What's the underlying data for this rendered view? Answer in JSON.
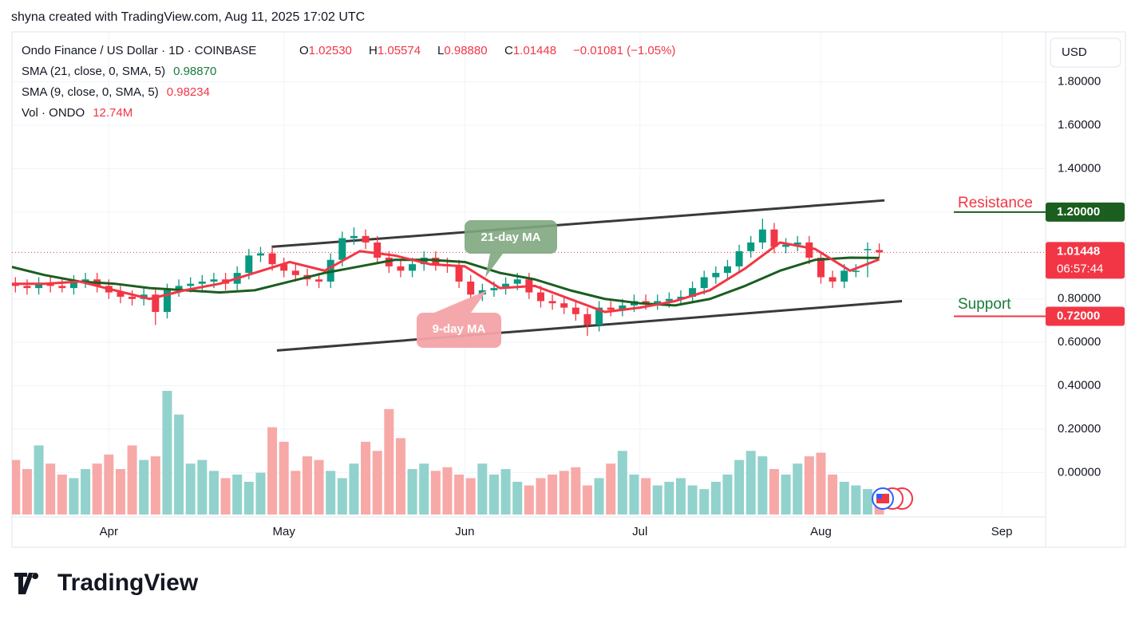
{
  "header": "shyna created with TradingView.com, Aug 11, 2025 17:02 UTC",
  "legend": {
    "symbol": "Ondo Finance / US Dollar · 1D · COINBASE",
    "o_label": "O",
    "o": "1.02530",
    "h_label": "H",
    "h": "1.05574",
    "l_label": "L",
    "l": "0.98880",
    "c_label": "C",
    "c": "1.01448",
    "change": "−0.01081 (−1.05%)",
    "sma21_label": "SMA (21, close, 0, SMA, 5)",
    "sma21": "0.98870",
    "sma9_label": "SMA (9, close, 0, SMA, 5)",
    "sma9": "0.98234",
    "vol_label": "Vol · ONDO",
    "vol": "12.74M"
  },
  "currency": "USD",
  "brand": "TradingView",
  "chart_data": {
    "type": "candlestick",
    "x": [
      1,
      3,
      5,
      7,
      9,
      11,
      13,
      15,
      17,
      19,
      21,
      23,
      25,
      27,
      29,
      31,
      33,
      35,
      37,
      39,
      41,
      43,
      45,
      47,
      49,
      51,
      53,
      55,
      57,
      59,
      61,
      63,
      65,
      67,
      69,
      71,
      73,
      75,
      77,
      79,
      81,
      83,
      85,
      87,
      89,
      91,
      93,
      95,
      97,
      99,
      101,
      103,
      105,
      107,
      109,
      111,
      113,
      115,
      117,
      119,
      121,
      123,
      125,
      127,
      129,
      131,
      133,
      135,
      137,
      139,
      141,
      143,
      145,
      147,
      149
    ],
    "open": [
      0.87,
      0.86,
      0.85,
      0.87,
      0.86,
      0.85,
      0.88,
      0.89,
      0.86,
      0.83,
      0.81,
      0.8,
      0.82,
      0.74,
      0.84,
      0.86,
      0.87,
      0.88,
      0.89,
      0.87,
      0.92,
      1.0,
      1.01,
      0.96,
      0.93,
      0.91,
      0.89,
      0.88,
      0.98,
      1.08,
      1.09,
      1.06,
      0.99,
      0.95,
      0.93,
      0.96,
      0.99,
      0.96,
      0.95,
      0.88,
      0.82,
      0.84,
      0.85,
      0.87,
      0.89,
      0.83,
      0.79,
      0.78,
      0.76,
      0.73,
      0.68,
      0.76,
      0.75,
      0.77,
      0.79,
      0.78,
      0.79,
      0.8,
      0.81,
      0.85,
      0.9,
      0.92,
      0.95,
      1.02,
      1.06,
      1.12,
      1.04,
      1.05,
      1.06,
      0.99,
      0.9,
      0.88,
      0.93,
      1.03,
      1.0253
    ],
    "high": [
      0.9,
      0.89,
      0.9,
      0.9,
      0.89,
      0.91,
      0.92,
      0.92,
      0.89,
      0.86,
      0.84,
      0.85,
      0.85,
      0.87,
      0.89,
      0.9,
      0.91,
      0.92,
      0.92,
      0.95,
      1.03,
      1.04,
      1.04,
      0.99,
      0.96,
      0.94,
      0.92,
      1.01,
      1.11,
      1.13,
      1.12,
      1.09,
      1.02,
      0.98,
      0.99,
      1.02,
      1.02,
      0.99,
      0.98,
      0.91,
      0.87,
      0.88,
      0.9,
      0.92,
      0.92,
      0.86,
      0.82,
      0.81,
      0.79,
      0.76,
      0.79,
      0.79,
      0.8,
      0.82,
      0.82,
      0.82,
      0.83,
      0.84,
      0.88,
      0.93,
      0.95,
      0.98,
      1.05,
      1.09,
      1.17,
      1.15,
      1.08,
      1.09,
      1.09,
      1.02,
      0.93,
      0.96,
      0.96,
      1.06,
      1.05574
    ],
    "low": [
      0.83,
      0.82,
      0.82,
      0.83,
      0.83,
      0.82,
      0.85,
      0.83,
      0.8,
      0.78,
      0.77,
      0.77,
      0.68,
      0.71,
      0.81,
      0.83,
      0.84,
      0.85,
      0.84,
      0.84,
      0.89,
      0.97,
      0.93,
      0.9,
      0.88,
      0.86,
      0.85,
      0.85,
      0.95,
      1.05,
      1.03,
      0.96,
      0.92,
      0.9,
      0.9,
      0.93,
      0.93,
      0.92,
      0.85,
      0.79,
      0.79,
      0.81,
      0.82,
      0.84,
      0.8,
      0.76,
      0.75,
      0.73,
      0.7,
      0.63,
      0.65,
      0.72,
      0.72,
      0.74,
      0.75,
      0.75,
      0.76,
      0.77,
      0.78,
      0.82,
      0.87,
      0.89,
      0.92,
      0.99,
      1.03,
      1.01,
      1.01,
      1.02,
      0.96,
      0.87,
      0.85,
      0.85,
      0.9,
      0.9,
      0.9888
    ],
    "close": [
      0.86,
      0.85,
      0.87,
      0.86,
      0.85,
      0.88,
      0.89,
      0.86,
      0.83,
      0.81,
      0.8,
      0.82,
      0.74,
      0.84,
      0.86,
      0.87,
      0.88,
      0.89,
      0.87,
      0.92,
      1.0,
      1.01,
      0.96,
      0.93,
      0.91,
      0.89,
      0.88,
      0.98,
      1.08,
      1.09,
      1.06,
      0.99,
      0.95,
      0.93,
      0.96,
      0.99,
      0.96,
      0.95,
      0.88,
      0.82,
      0.84,
      0.85,
      0.87,
      0.89,
      0.83,
      0.79,
      0.78,
      0.76,
      0.73,
      0.68,
      0.76,
      0.75,
      0.77,
      0.79,
      0.78,
      0.79,
      0.8,
      0.81,
      0.85,
      0.9,
      0.92,
      0.95,
      1.02,
      1.06,
      1.12,
      1.04,
      1.05,
      1.06,
      0.99,
      0.9,
      0.88,
      0.93,
      0.93,
      1.03,
      1.01448
    ],
    "volume": [
      30,
      25,
      38,
      28,
      22,
      20,
      25,
      28,
      33,
      25,
      38,
      30,
      32,
      68,
      55,
      28,
      30,
      24,
      20,
      22,
      18,
      23,
      48,
      40,
      24,
      32,
      30,
      24,
      20,
      28,
      40,
      35,
      58,
      42,
      25,
      28,
      24,
      26,
      22,
      20,
      28,
      22,
      25,
      18,
      16,
      20,
      22,
      24,
      26,
      16,
      20,
      28,
      35,
      22,
      20,
      16,
      18,
      20,
      16,
      14,
      18,
      22,
      30,
      35,
      32,
      25,
      22,
      28,
      32,
      34,
      22,
      18,
      16,
      14,
      12.74
    ],
    "up_color": "#089981",
    "down_color": "#f23645",
    "vol_up_color": "#92d2cc",
    "vol_down_color": "#f7a9a7",
    "lines": [
      {
        "color": "#1b5e20",
        "x": [
          0,
          6,
          12,
          18,
          24,
          30,
          36,
          42,
          48,
          54,
          60,
          66,
          72,
          78,
          84,
          90,
          96,
          102,
          108,
          114,
          120,
          126,
          132,
          138,
          144,
          149
        ],
        "values": [
          0.95,
          0.91,
          0.88,
          0.87,
          0.85,
          0.84,
          0.83,
          0.84,
          0.88,
          0.92,
          0.95,
          0.98,
          0.98,
          0.97,
          0.92,
          0.89,
          0.84,
          0.8,
          0.78,
          0.77,
          0.8,
          0.86,
          0.93,
          0.98,
          0.99,
          0.9887
        ]
      },
      {
        "color": "#f23645",
        "x": [
          0,
          6,
          12,
          18,
          24,
          30,
          36,
          42,
          48,
          54,
          60,
          66,
          72,
          78,
          84,
          90,
          96,
          102,
          108,
          114,
          120,
          126,
          132,
          138,
          144,
          149
        ],
        "values": [
          0.87,
          0.87,
          0.88,
          0.84,
          0.8,
          0.84,
          0.87,
          0.92,
          0.97,
          0.93,
          1.02,
          1.0,
          0.96,
          0.95,
          0.85,
          0.86,
          0.8,
          0.74,
          0.76,
          0.79,
          0.84,
          0.94,
          1.06,
          1.03,
          0.93,
          0.98234
        ]
      }
    ],
    "trendlines": [
      {
        "x": [
          44.9,
          149.9
        ],
        "values": [
          1.04,
          1.254
        ]
      },
      {
        "x": [
          45.8,
          152.9
        ],
        "values": [
          0.5625,
          0.79
        ]
      }
    ],
    "xlim": [
      0,
      177.5
    ],
    "ylim": [
      -0.34,
      2.03
    ],
    "xticks": [
      {
        "value": 17,
        "label": "Apr"
      },
      {
        "value": 47,
        "label": "May"
      },
      {
        "value": 78,
        "label": "Jun"
      },
      {
        "value": 108,
        "label": "Jul"
      },
      {
        "value": 139,
        "label": "Aug"
      },
      {
        "value": 170,
        "label": "Sep"
      }
    ],
    "yticks": [
      {
        "value": 0,
        "label": "0.00000"
      },
      {
        "value": 0.2,
        "label": "0.20000"
      },
      {
        "value": 0.4,
        "label": "0.40000"
      },
      {
        "value": 0.6,
        "label": "0.60000"
      },
      {
        "value": 0.8,
        "label": "0.80000"
      },
      {
        "value": 1.2,
        "label": "1.20000"
      },
      {
        "value": 1.4,
        "label": "1.40000"
      },
      {
        "value": 1.6,
        "label": "1.60000"
      },
      {
        "value": 1.8,
        "label": "1.80000"
      }
    ],
    "resistance": {
      "text": "Resistance",
      "value": 1.2,
      "label": "1.20000"
    },
    "support": {
      "text": "Support",
      "value": 0.72,
      "label": "0.72000"
    },
    "last": {
      "value": 1.01448,
      "label": "1.01448",
      "countdown": "06:57:44"
    },
    "callouts": [
      "21-day MA",
      "9-day MA"
    ]
  }
}
